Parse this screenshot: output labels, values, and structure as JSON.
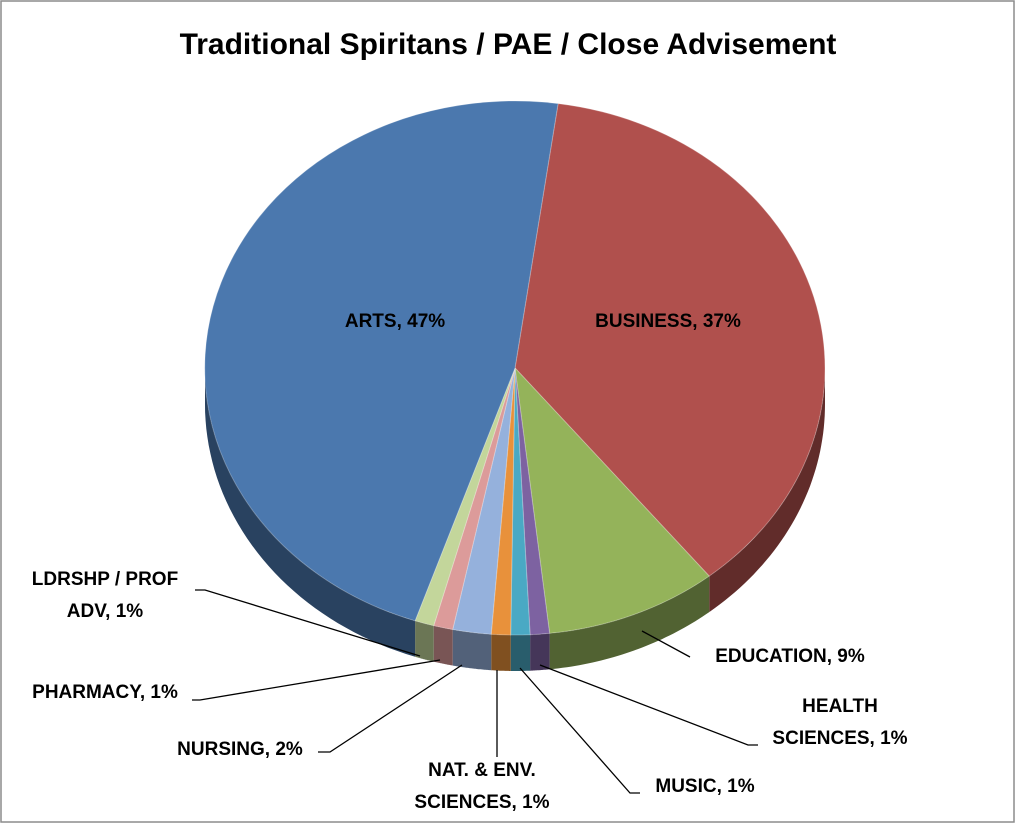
{
  "chart_data": {
    "type": "pie3d",
    "title": "Traditional Spiritans / PAE / Close Advisement",
    "values": [
      37,
      9,
      1,
      1,
      1,
      2,
      1,
      1,
      47
    ],
    "value_labels": [
      "BUSINESS, 37%",
      "EDUCATION, 9%",
      "HEALTH SCIENCES, 1%",
      "MUSIC, 1%",
      "NAT. & ENV. SCIENCES, 1%",
      "NURSING, 2%",
      "PHARMACY, 1%",
      "LDRSHP / PROF ADV, 1%",
      "ARTS, 47%"
    ],
    "colors": [
      "#b0504d",
      "#94b35a",
      "#7d62a1",
      "#4aa9c4",
      "#e8913b",
      "#95b1dc",
      "#dc9b9a",
      "#c3d69b",
      "#4b78ae"
    ]
  }
}
